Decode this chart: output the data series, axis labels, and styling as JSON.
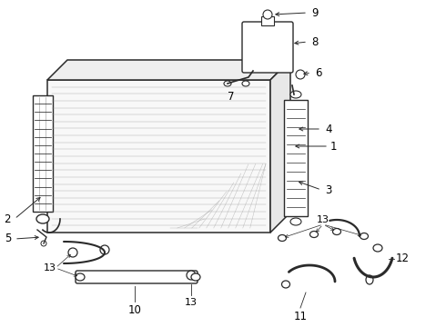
{
  "bg_color": "#ffffff",
  "line_color": "#2a2a2a",
  "label_color": "#000000",
  "label_fontsize": 8.5,
  "fig_w": 4.9,
  "fig_h": 3.6,
  "dpi": 100
}
